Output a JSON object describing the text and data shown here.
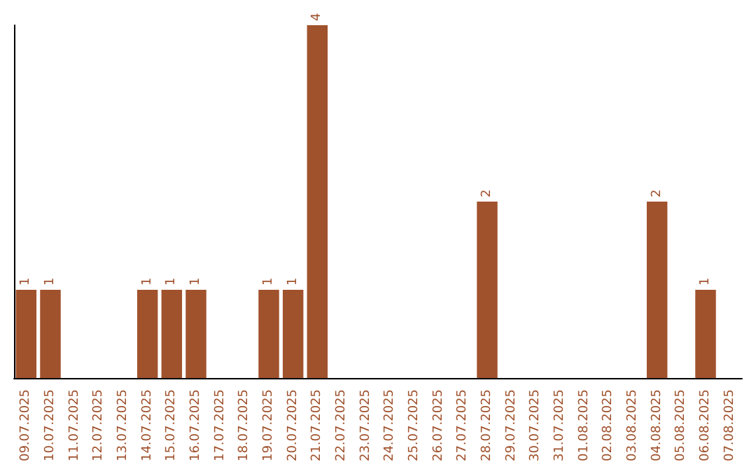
{
  "chart_data": {
    "type": "bar",
    "categories": [
      "09.07.2025",
      "10.07.2025",
      "11.07.2025",
      "12.07.2025",
      "13.07.2025",
      "14.07.2025",
      "15.07.2025",
      "16.07.2025",
      "17.07.2025",
      "18.07.2025",
      "19.07.2025",
      "20.07.2025",
      "21.07.2025",
      "22.07.2025",
      "23.07.2025",
      "24.07.2025",
      "25.07.2025",
      "26.07.2025",
      "27.07.2025",
      "28.07.2025",
      "29.07.2025",
      "30.07.2025",
      "31.07.2025",
      "01.08.2025",
      "02.08.2025",
      "03.08.2025",
      "04.08.2025",
      "05.08.2025",
      "06.08.2025",
      "07.08.2025"
    ],
    "values": [
      1,
      1,
      0,
      0,
      0,
      1,
      1,
      1,
      0,
      0,
      1,
      1,
      4,
      0,
      0,
      0,
      0,
      0,
      0,
      2,
      0,
      0,
      0,
      0,
      0,
      0,
      2,
      0,
      1,
      0
    ],
    "color": "#a0522d",
    "value_labels": [
      "1",
      "1",
      null,
      null,
      null,
      "1",
      "1",
      "1",
      null,
      null,
      "1",
      "1",
      "4",
      null,
      null,
      null,
      null,
      null,
      null,
      "2",
      null,
      null,
      null,
      null,
      null,
      null,
      "2",
      null,
      "1",
      null
    ],
    "grid": false,
    "tick_labels": "x"
  }
}
